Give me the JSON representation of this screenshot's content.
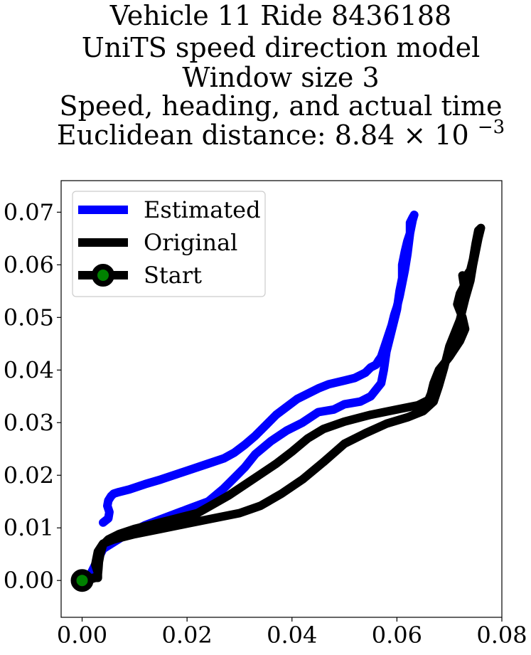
{
  "chart_data": {
    "type": "line",
    "title_lines": [
      "Vehicle 11 Ride 8436188",
      "UniTS speed direction model",
      "Window size 3",
      "Speed, heading, and actual time",
      "Euclidean distance: 8.84"
    ],
    "title_math": {
      "mult": "×",
      "base": "10",
      "exp": "−3"
    },
    "xlabel": "",
    "ylabel": "",
    "xlim": [
      -0.004,
      0.08
    ],
    "ylim": [
      -0.007,
      0.076
    ],
    "xticks": [
      "0.00",
      "0.02",
      "0.04",
      "0.06",
      "0.08"
    ],
    "yticks": [
      "0.00",
      "0.01",
      "0.02",
      "0.03",
      "0.04",
      "0.05",
      "0.06",
      "0.07"
    ],
    "xtick_values": [
      0,
      0.02,
      0.04,
      0.06,
      0.08
    ],
    "ytick_values": [
      0,
      0.01,
      0.02,
      0.03,
      0.04,
      0.05,
      0.06,
      0.07
    ],
    "grid": false,
    "legend": {
      "placement": "top-left",
      "entries": [
        {
          "label": "Estimated",
          "color": "#0000ff",
          "kind": "line"
        },
        {
          "label": "Original",
          "color": "#000000",
          "kind": "line"
        },
        {
          "label": "Start",
          "color": "#000000",
          "marker_face": "#008000",
          "kind": "marker"
        }
      ]
    },
    "series": [
      {
        "name": "Estimated",
        "color": "#0000ff",
        "x": [
          0.0,
          0.001,
          0.0015,
          0.002,
          0.004,
          0.008,
          0.012,
          0.016,
          0.02,
          0.024,
          0.027,
          0.029,
          0.031,
          0.033,
          0.036,
          0.039,
          0.042,
          0.045,
          0.048,
          0.05,
          0.053,
          0.055,
          0.057,
          0.0575,
          0.058,
          0.059,
          0.06,
          0.0605,
          0.061,
          0.061,
          0.0615,
          0.062,
          0.0625,
          0.0625,
          0.063,
          0.0633,
          0.063,
          0.0625,
          0.062,
          0.0615,
          0.061,
          0.0605,
          0.06,
          0.0595,
          0.059,
          0.058,
          0.0575,
          0.057,
          0.0565,
          0.056,
          0.055,
          0.054,
          0.052,
          0.05,
          0.047,
          0.045,
          0.043,
          0.041,
          0.039,
          0.037,
          0.035,
          0.033,
          0.031,
          0.029,
          0.027,
          0.024,
          0.021,
          0.018,
          0.015,
          0.012,
          0.009,
          0.007,
          0.006,
          0.0055,
          0.005,
          0.0048,
          0.0052,
          0.005,
          0.004
        ],
        "y": [
          0.0,
          0.0005,
          0.001,
          0.002,
          0.006,
          0.0085,
          0.0105,
          0.012,
          0.0135,
          0.015,
          0.0175,
          0.0195,
          0.0215,
          0.024,
          0.0265,
          0.0285,
          0.03,
          0.032,
          0.0325,
          0.0335,
          0.034,
          0.035,
          0.0375,
          0.04,
          0.0435,
          0.0475,
          0.0515,
          0.055,
          0.0575,
          0.06,
          0.0625,
          0.0645,
          0.066,
          0.068,
          0.069,
          0.0695,
          0.0685,
          0.066,
          0.062,
          0.059,
          0.0565,
          0.054,
          0.052,
          0.0505,
          0.0485,
          0.0455,
          0.044,
          0.0425,
          0.0418,
          0.041,
          0.0405,
          0.0395,
          0.0385,
          0.038,
          0.0373,
          0.0365,
          0.0355,
          0.0345,
          0.033,
          0.0315,
          0.0295,
          0.0275,
          0.0258,
          0.0243,
          0.0232,
          0.0222,
          0.0212,
          0.0202,
          0.0192,
          0.0183,
          0.0173,
          0.0168,
          0.0165,
          0.016,
          0.0152,
          0.0142,
          0.013,
          0.0118,
          0.011
        ]
      },
      {
        "name": "Original",
        "color": "#000000",
        "x": [
          0.0,
          0.002,
          0.003,
          0.003,
          0.0025,
          0.003,
          0.004,
          0.006,
          0.01,
          0.015,
          0.02,
          0.025,
          0.03,
          0.034,
          0.038,
          0.042,
          0.046,
          0.05,
          0.054,
          0.058,
          0.062,
          0.065,
          0.067,
          0.068,
          0.069,
          0.07,
          0.072,
          0.073,
          0.074,
          0.0745,
          0.075,
          0.0755,
          0.076,
          0.0755,
          0.075,
          0.0745,
          0.074,
          0.073,
          0.0725,
          0.0728,
          0.072,
          0.0715,
          0.0725,
          0.073,
          0.072,
          0.07,
          0.068,
          0.067,
          0.0665,
          0.066,
          0.064,
          0.06,
          0.055,
          0.05,
          0.046,
          0.043,
          0.04,
          0.037,
          0.034,
          0.031,
          0.028,
          0.025,
          0.022,
          0.018,
          0.014,
          0.01,
          0.007,
          0.005,
          0.004,
          0.0035,
          0.0032,
          0.0031,
          0.003,
          0.0025,
          0.0015,
          0.0005
        ],
        "y": [
          0.0,
          0.0005,
          0.0005,
          0.0015,
          0.003,
          0.0055,
          0.007,
          0.0078,
          0.0088,
          0.0098,
          0.0108,
          0.0118,
          0.0128,
          0.0142,
          0.0165,
          0.0192,
          0.0225,
          0.026,
          0.028,
          0.0298,
          0.031,
          0.0322,
          0.034,
          0.037,
          0.0405,
          0.0445,
          0.0495,
          0.0535,
          0.057,
          0.06,
          0.0625,
          0.065,
          0.067,
          0.0665,
          0.064,
          0.061,
          0.059,
          0.0575,
          0.058,
          0.056,
          0.0545,
          0.0525,
          0.05,
          0.0478,
          0.0455,
          0.0425,
          0.04,
          0.0375,
          0.0355,
          0.0343,
          0.0333,
          0.0325,
          0.0315,
          0.0302,
          0.0288,
          0.027,
          0.0245,
          0.0222,
          0.0202,
          0.0182,
          0.0162,
          0.0145,
          0.0128,
          0.0118,
          0.0108,
          0.0098,
          0.0088,
          0.0078,
          0.0068,
          0.0052,
          0.0035,
          0.0022,
          0.0012,
          0.0005,
          0.0002,
          0.0
        ]
      }
    ],
    "start_point": {
      "name": "Start",
      "x": 0.0,
      "y": 0.0,
      "edge_color": "#000000",
      "face_color": "#008000"
    }
  }
}
